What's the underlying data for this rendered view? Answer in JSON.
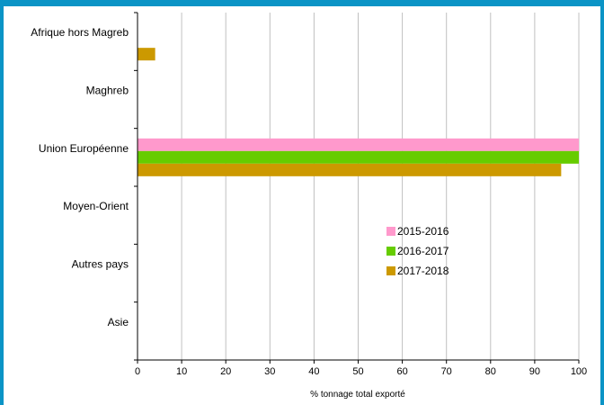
{
  "chart_data": {
    "type": "bar",
    "orientation": "horizontal",
    "categories": [
      "Afrique hors Magreb",
      "Maghreb",
      "Union Européenne",
      "Moyen-Orient",
      "Autres pays",
      "Asie"
    ],
    "series": [
      {
        "name": "2015-2016",
        "color": "#ff99cc",
        "values": [
          0,
          0,
          100,
          0,
          0,
          0
        ]
      },
      {
        "name": "2016-2017",
        "color": "#66cc00",
        "values": [
          0,
          0,
          100,
          0,
          0,
          0
        ]
      },
      {
        "name": "2017-2018",
        "color": "#cc9900",
        "values": [
          4,
          0,
          96,
          0,
          0,
          0
        ]
      }
    ],
    "xlabel": "% tonnage total exporté",
    "ylabel": "",
    "xlim": [
      0,
      100
    ],
    "xticks": [
      "0",
      "10",
      "20",
      "30",
      "40",
      "50",
      "60",
      "70",
      "80",
      "90",
      "100"
    ],
    "grid": "vertical",
    "legend_position": "center-right"
  },
  "colors": {
    "frame": "#0b94c6",
    "grid": "#c0c0c0"
  }
}
